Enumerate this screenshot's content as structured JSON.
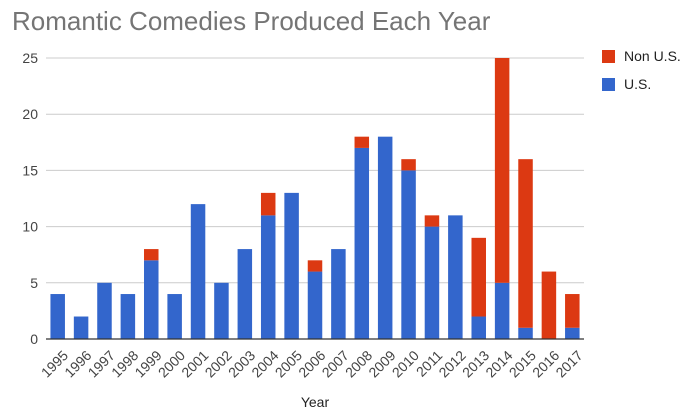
{
  "chart_data": {
    "type": "bar",
    "stacked": true,
    "title": "Romantic Comedies Produced Each Year",
    "xlabel": "Year",
    "ylabel": "",
    "ylim": [
      0,
      25
    ],
    "yticks": [
      0,
      5,
      10,
      15,
      20,
      25
    ],
    "grid": true,
    "legend_position": "top-right",
    "categories": [
      "1995",
      "1996",
      "1997",
      "1998",
      "1999",
      "2000",
      "2001",
      "2002",
      "2003",
      "2004",
      "2005",
      "2006",
      "2007",
      "2008",
      "2009",
      "2010",
      "2011",
      "2012",
      "2013",
      "2014",
      "2015",
      "2016",
      "2017"
    ],
    "series": [
      {
        "name": "U.S.",
        "color": "#3366cc",
        "values": [
          4,
          2,
          5,
          4,
          7,
          4,
          12,
          5,
          8,
          11,
          13,
          6,
          8,
          17,
          18,
          15,
          10,
          11,
          2,
          5,
          1,
          0,
          1
        ]
      },
      {
        "name": "Non U.S.",
        "color": "#dc3912",
        "values": [
          0,
          0,
          0,
          0,
          1,
          0,
          0,
          0,
          0,
          2,
          0,
          1,
          0,
          1,
          0,
          1,
          1,
          0,
          7,
          20,
          15,
          6,
          3
        ]
      }
    ]
  }
}
